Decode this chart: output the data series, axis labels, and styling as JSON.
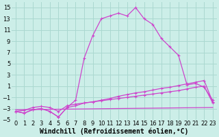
{
  "background_color": "#cceee8",
  "grid_color": "#aad8d0",
  "line_color": "#cc44cc",
  "xlabel": "Windchill (Refroidissement éolien,°C)",
  "xlabel_fontsize": 7,
  "xlim": [
    -0.5,
    23.5
  ],
  "ylim": [
    -5,
    16
  ],
  "xticks": [
    0,
    1,
    2,
    3,
    4,
    5,
    6,
    7,
    8,
    9,
    10,
    11,
    12,
    13,
    14,
    15,
    16,
    17,
    18,
    19,
    20,
    21,
    22,
    23
  ],
  "yticks": [
    -5,
    -3,
    -1,
    1,
    3,
    5,
    7,
    9,
    11,
    13,
    15
  ],
  "tick_fontsize": 6,
  "line1_x": [
    0,
    1,
    2,
    3,
    4,
    5,
    6,
    7,
    8,
    9,
    10,
    11,
    12,
    13,
    14,
    15,
    16,
    17,
    18,
    19,
    20,
    21,
    22,
    23
  ],
  "line1_y": [
    -3.5,
    -3.8,
    -3.2,
    -3.0,
    -3.5,
    -4.5,
    -2.8,
    -1.5,
    6.0,
    10.0,
    13.0,
    13.5,
    14.0,
    13.5,
    15.0,
    13.0,
    12.0,
    9.5,
    8.0,
    6.5,
    1.2,
    1.5,
    0.8,
    -1.5
  ],
  "line2_x": [
    0,
    1,
    2,
    3,
    4,
    5,
    6,
    7,
    8,
    9,
    10,
    11,
    12,
    13,
    14,
    15,
    16,
    17,
    18,
    19,
    20,
    21,
    22,
    23
  ],
  "line2_y": [
    -3.5,
    -3.8,
    -3.2,
    -3.0,
    -3.5,
    -4.5,
    -2.8,
    -2.5,
    -2.0,
    -1.8,
    -1.5,
    -1.2,
    -0.8,
    -0.5,
    -0.2,
    0.0,
    0.3,
    0.6,
    0.8,
    1.1,
    1.4,
    1.7,
    2.0,
    -1.8
  ],
  "line3_x": [
    0,
    1,
    2,
    3,
    4,
    5,
    6,
    7,
    8,
    9,
    10,
    11,
    12,
    13,
    14,
    15,
    16,
    17,
    18,
    19,
    20,
    21,
    22,
    23
  ],
  "line3_y": [
    -3.5,
    -3.3,
    -2.8,
    -2.6,
    -2.8,
    -3.5,
    -2.5,
    -2.2,
    -2.0,
    -1.8,
    -1.6,
    -1.4,
    -1.2,
    -1.0,
    -0.8,
    -0.6,
    -0.4,
    -0.2,
    0.0,
    0.2,
    0.5,
    0.8,
    1.0,
    -2.0
  ],
  "line4_x": [
    0,
    23
  ],
  "line4_y": [
    -3.2,
    -2.8
  ]
}
